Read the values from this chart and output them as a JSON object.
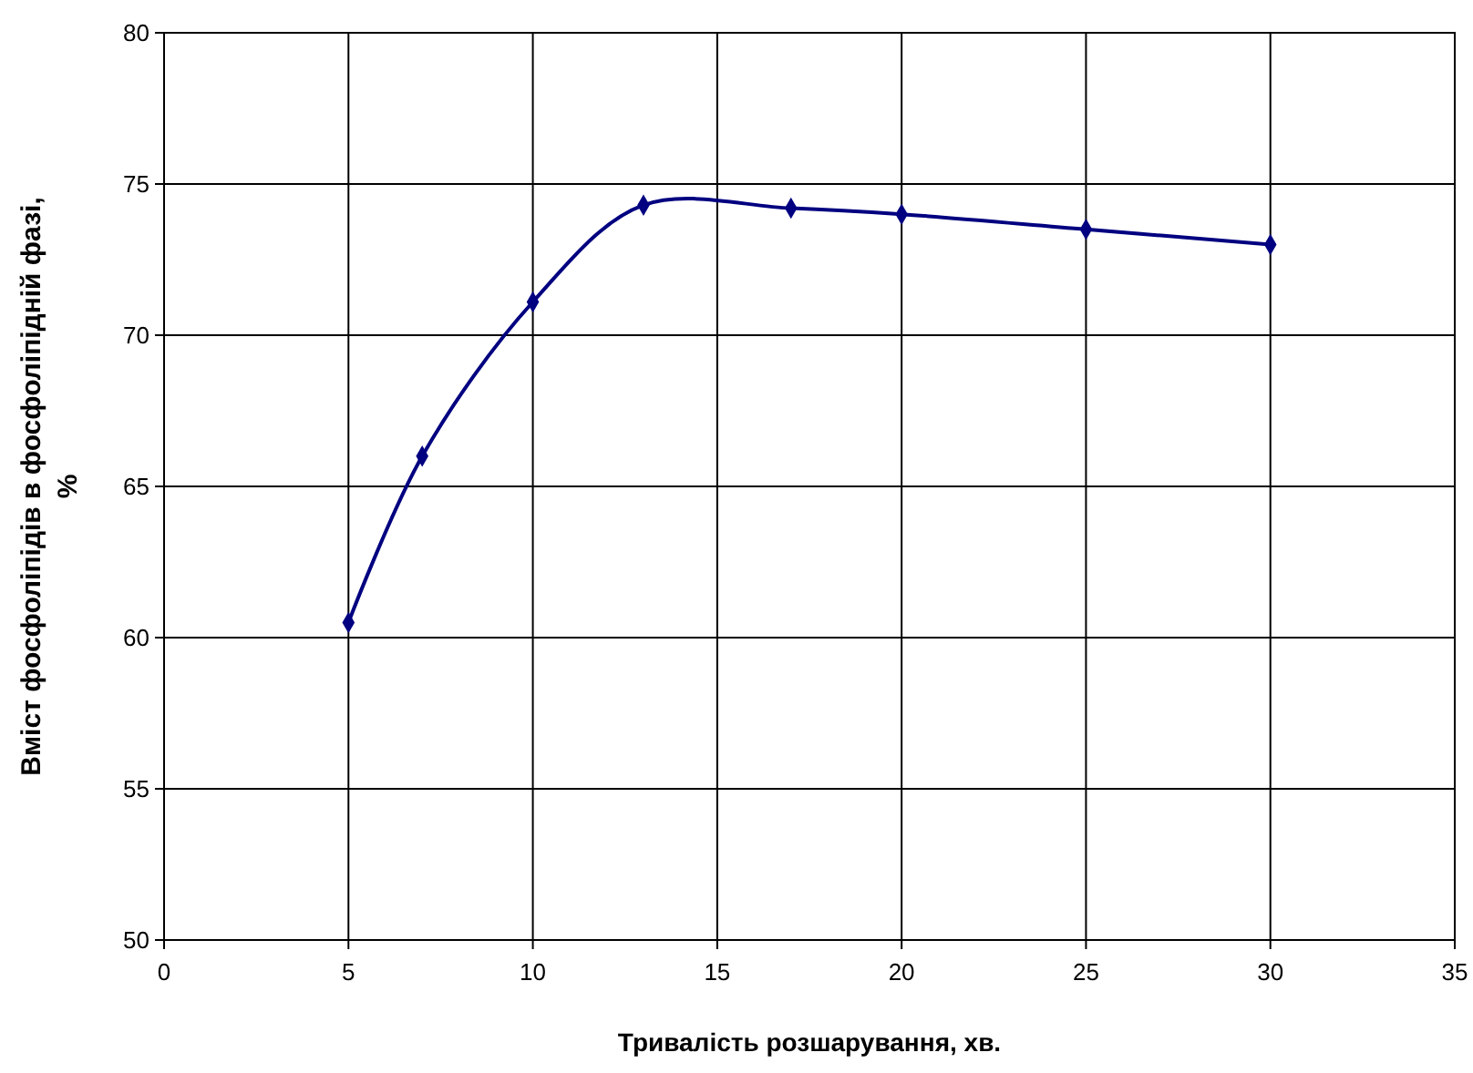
{
  "chart_data": {
    "type": "line",
    "xlabel": "Тривалість розшарування, хв.",
    "ylabel": "Вміст фосфоліпідів в фосфоліпідній фазі, %",
    "x": [
      5,
      7,
      10,
      13,
      17,
      20,
      25,
      30
    ],
    "series": [
      {
        "color": "#000080",
        "values": [
          60.5,
          66,
          71.1,
          74.3,
          74.2,
          74.0,
          73.5,
          73.0
        ]
      }
    ],
    "xlim": [
      0,
      35
    ],
    "xticks": [
      0,
      5,
      10,
      15,
      20,
      25,
      30,
      35
    ],
    "ylim": [
      50,
      80
    ],
    "yticks": [
      50,
      55,
      60,
      65,
      70,
      75,
      80
    ],
    "grid": true,
    "marker": "diamond",
    "line_style": "solid"
  }
}
